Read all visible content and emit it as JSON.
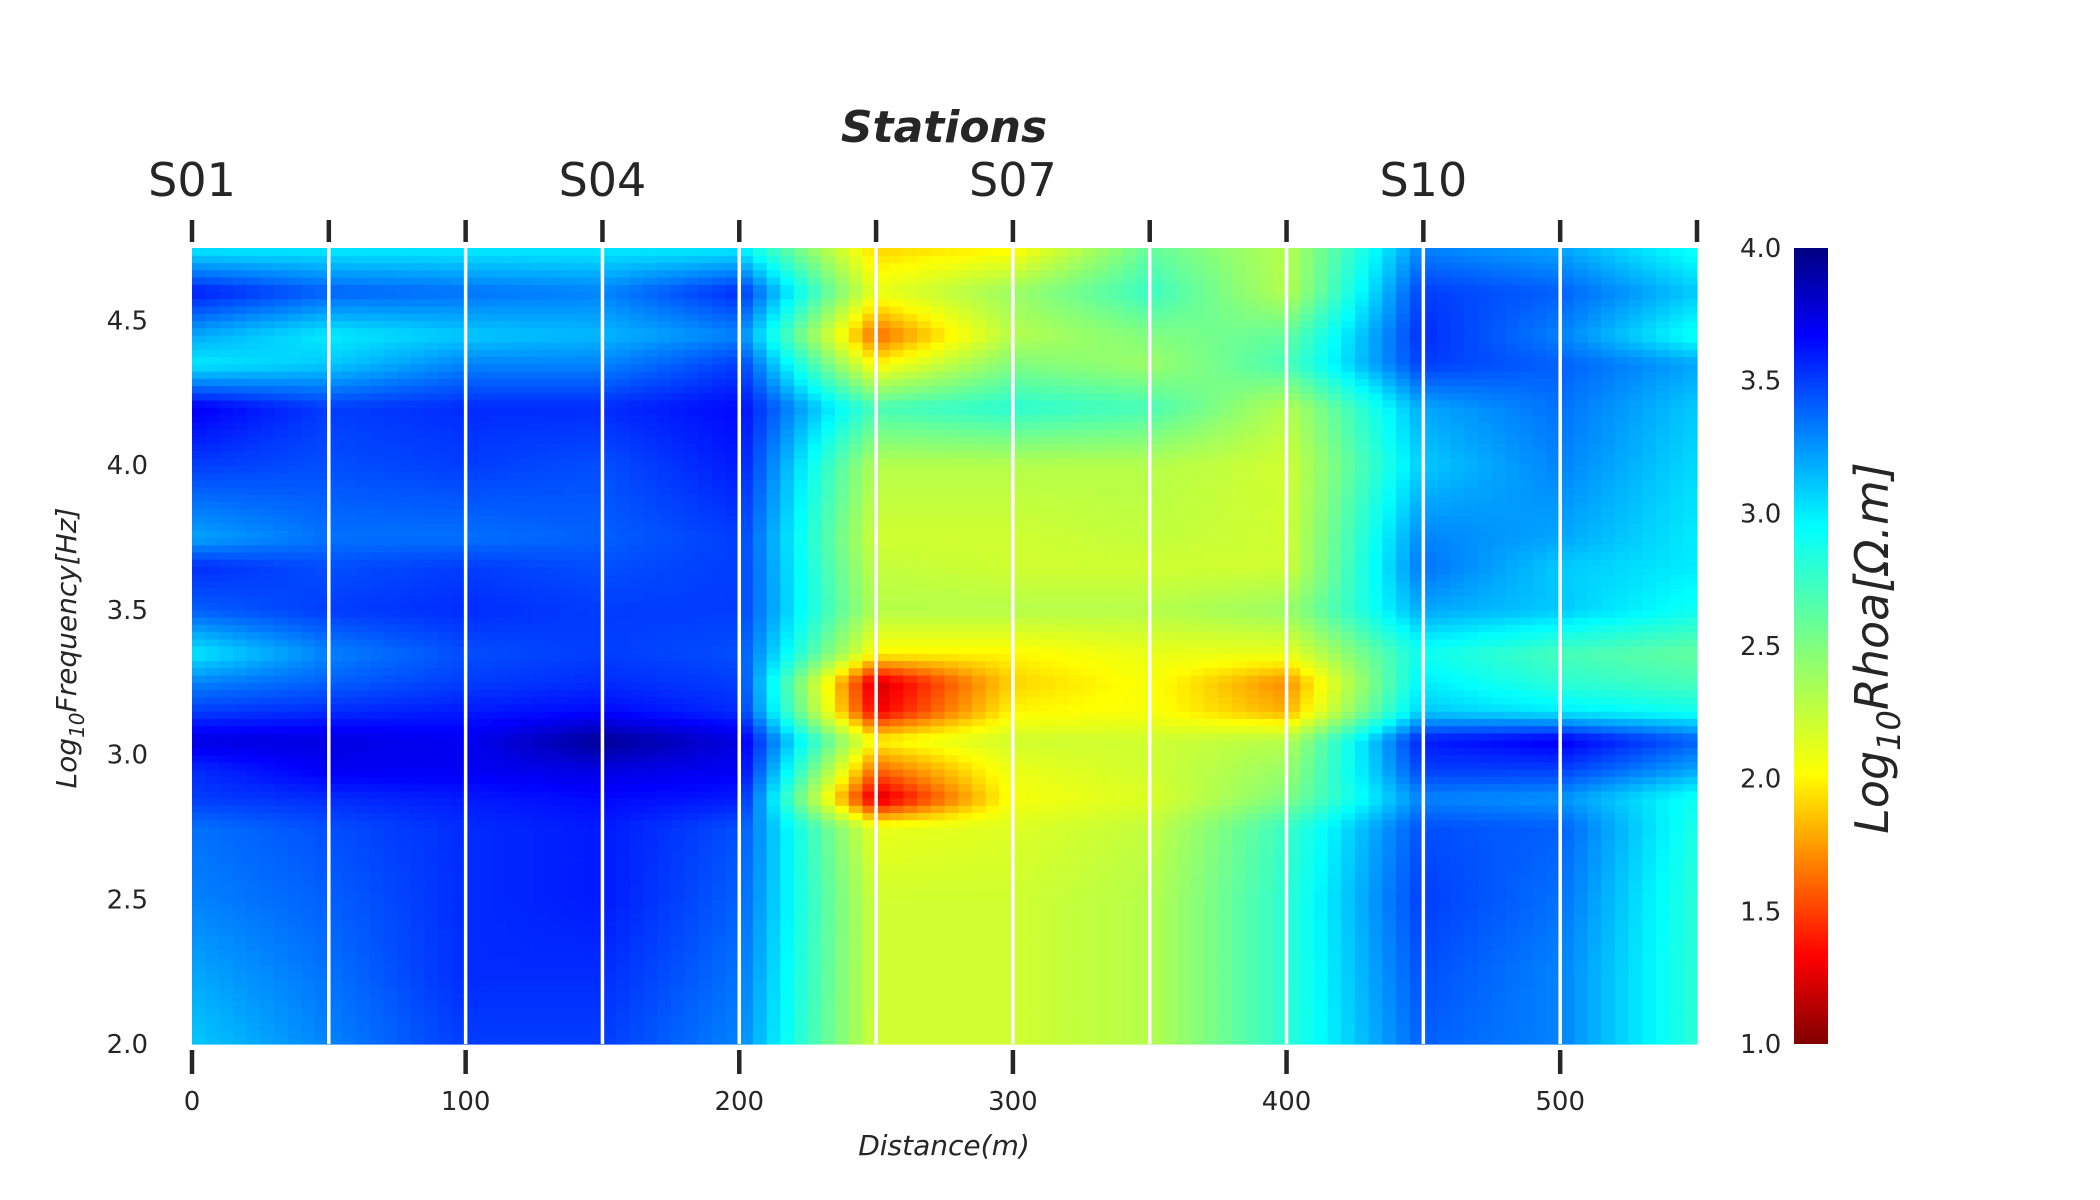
{
  "chart_data": {
    "type": "heatmap",
    "title": "Stations",
    "xlabel": "Distance(m)",
    "ylabel": {
      "prefix": "Log",
      "sub": "10",
      "rest": "Frequency[Hz]"
    },
    "colorbar_label": {
      "prefix": "Log",
      "sub": "10",
      "rest": "Rhoa[Ω.m]"
    },
    "colormap": "jet_r",
    "xlim": [
      0,
      550
    ],
    "ylim": [
      2.0,
      4.75
    ],
    "clim": [
      1.0,
      4.0
    ],
    "x_ticks": [
      0,
      100,
      200,
      300,
      400,
      500
    ],
    "y_ticks": [
      2.0,
      2.5,
      3.0,
      3.5,
      4.0,
      4.5
    ],
    "y_tick_labels": [
      "2.0",
      "2.5",
      "3.0",
      "3.5",
      "4.0",
      "4.5"
    ],
    "colorbar_ticks": [
      1.0,
      1.5,
      2.0,
      2.5,
      3.0,
      3.5,
      4.0
    ],
    "colorbar_tick_labels": [
      "1.0",
      "1.5",
      "2.0",
      "2.5",
      "3.0",
      "3.5",
      "4.0"
    ],
    "station_positions": [
      0,
      50,
      100,
      150,
      200,
      250,
      300,
      350,
      400,
      450,
      500,
      550
    ],
    "station_labels": [
      {
        "x": 0,
        "label": "S01"
      },
      {
        "x": 150,
        "label": "S04"
      },
      {
        "x": 300,
        "label": "S07"
      },
      {
        "x": 450,
        "label": "S10"
      }
    ],
    "station_dividers": [
      50,
      100,
      150,
      200,
      250,
      300,
      350,
      400,
      450,
      500
    ],
    "frequencies": [
      2.0,
      2.25,
      2.5,
      2.75,
      2.85,
      2.95,
      3.05,
      3.15,
      3.25,
      3.35,
      3.5,
      3.65,
      3.75,
      4.0,
      4.2,
      4.35,
      4.45,
      4.6,
      4.75
    ],
    "stations_x": [
      0,
      50,
      100,
      150,
      200,
      250,
      300,
      350,
      400,
      450,
      500,
      550
    ],
    "values": [
      [
        3.1,
        3.3,
        3.5,
        3.5,
        3.3,
        2.2,
        2.2,
        2.3,
        2.8,
        3.4,
        3.3,
        2.8
      ],
      [
        3.2,
        3.35,
        3.55,
        3.55,
        3.35,
        2.2,
        2.2,
        2.3,
        2.8,
        3.45,
        3.3,
        2.8
      ],
      [
        3.3,
        3.4,
        3.55,
        3.6,
        3.4,
        2.2,
        2.2,
        2.3,
        2.8,
        3.5,
        3.35,
        2.8
      ],
      [
        3.35,
        3.45,
        3.55,
        3.6,
        3.45,
        2.1,
        2.15,
        2.25,
        2.75,
        3.45,
        3.4,
        2.85
      ],
      [
        3.5,
        3.55,
        3.6,
        3.65,
        3.6,
        1.2,
        2.05,
        2.15,
        2.5,
        3.3,
        3.25,
        2.9
      ],
      [
        3.55,
        3.7,
        3.7,
        3.75,
        3.7,
        1.6,
        2.1,
        2.2,
        2.4,
        3.5,
        3.5,
        3.2
      ],
      [
        3.75,
        3.75,
        3.7,
        3.95,
        3.75,
        2.0,
        2.2,
        2.2,
        2.3,
        3.6,
        3.7,
        3.4
      ],
      [
        3.5,
        3.55,
        3.6,
        3.65,
        3.55,
        1.3,
        2.0,
        2.05,
        1.8,
        3.1,
        3.0,
        2.9
      ],
      [
        3.3,
        3.4,
        3.5,
        3.55,
        3.5,
        1.2,
        1.9,
        2.05,
        1.7,
        3.0,
        2.8,
        2.7
      ],
      [
        3.0,
        3.3,
        3.45,
        3.5,
        3.45,
        2.0,
        2.0,
        2.1,
        2.1,
        2.9,
        2.7,
        2.6
      ],
      [
        3.4,
        3.5,
        3.55,
        3.5,
        3.5,
        2.3,
        2.3,
        2.3,
        2.4,
        3.2,
        3.1,
        2.9
      ],
      [
        3.55,
        3.45,
        3.5,
        3.45,
        3.5,
        2.25,
        2.2,
        2.2,
        2.2,
        3.35,
        3.1,
        3.0
      ],
      [
        3.2,
        3.35,
        3.35,
        3.4,
        3.5,
        2.2,
        2.2,
        2.25,
        2.2,
        3.3,
        3.2,
        3.0
      ],
      [
        3.5,
        3.45,
        3.5,
        3.45,
        3.6,
        2.3,
        2.3,
        2.3,
        2.2,
        3.1,
        3.3,
        3.05
      ],
      [
        3.7,
        3.5,
        3.55,
        3.55,
        3.65,
        2.7,
        2.8,
        2.7,
        2.3,
        3.2,
        3.35,
        3.1
      ],
      [
        3.0,
        3.1,
        3.3,
        3.3,
        3.5,
        2.0,
        2.5,
        2.4,
        2.7,
        3.5,
        3.4,
        3.2
      ],
      [
        3.2,
        3.0,
        3.1,
        3.15,
        3.3,
        1.6,
        2.3,
        2.5,
        2.6,
        3.55,
        3.3,
        2.9
      ],
      [
        3.6,
        3.4,
        3.35,
        3.3,
        3.55,
        2.1,
        2.4,
        2.75,
        2.3,
        3.5,
        3.4,
        3.1
      ],
      [
        3.0,
        3.0,
        3.0,
        3.0,
        3.0,
        1.9,
        2.0,
        2.6,
        2.3,
        3.3,
        3.2,
        2.9
      ]
    ]
  }
}
